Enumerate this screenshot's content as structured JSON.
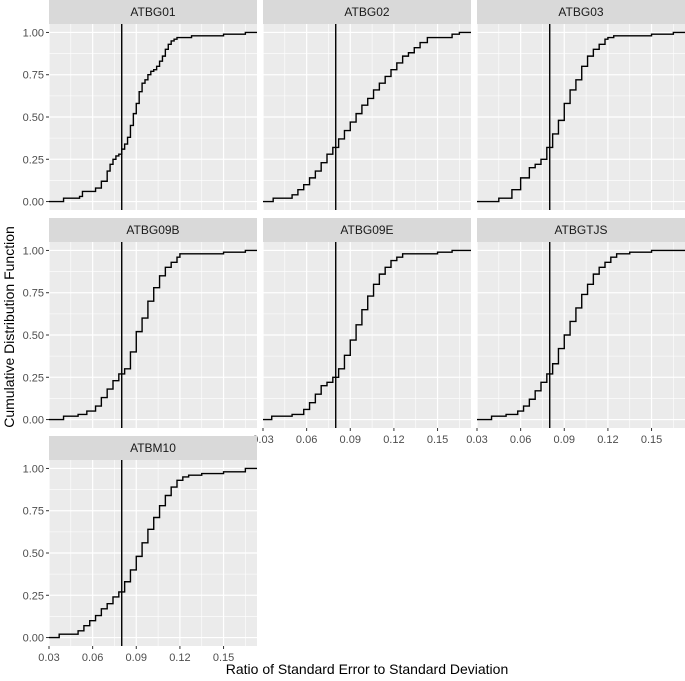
{
  "chart_data": {
    "type": "line",
    "subtype": "step-ecdf-small-multiples",
    "xlabel": "Ratio of Standard Error to Standard Deviation",
    "ylabel": "Cumulative Distribution Function",
    "xlim": [
      0.03,
      0.173
    ],
    "ylim": [
      0,
      1
    ],
    "x_ticks": [
      0.03,
      0.06,
      0.09,
      0.12,
      0.15
    ],
    "y_ticks": [
      0.0,
      0.25,
      0.5,
      0.75,
      1.0
    ],
    "x_tick_labels": [
      "0.03",
      "0.06",
      "0.09",
      "0.12",
      "0.15"
    ],
    "y_tick_labels": [
      "0.00",
      "0.25",
      "0.50",
      "0.75",
      "1.00"
    ],
    "reference_line_x": 0.08,
    "grid": true,
    "line_color": "#000000",
    "panel_background": "#ebebeb",
    "strip_background": "#d9d9d9",
    "panels": [
      {
        "name": "ATBG01",
        "x": [
          0.03,
          0.04,
          0.051,
          0.053,
          0.062,
          0.066,
          0.07,
          0.072,
          0.074,
          0.076,
          0.078,
          0.08,
          0.082,
          0.084,
          0.086,
          0.088,
          0.09,
          0.092,
          0.094,
          0.096,
          0.098,
          0.1,
          0.102,
          0.104,
          0.106,
          0.108,
          0.11,
          0.112,
          0.114,
          0.116,
          0.118,
          0.12,
          0.128,
          0.135,
          0.15,
          0.165,
          0.173
        ],
        "y": [
          0.0,
          0.02,
          0.03,
          0.06,
          0.08,
          0.12,
          0.18,
          0.22,
          0.25,
          0.27,
          0.28,
          0.31,
          0.34,
          0.38,
          0.45,
          0.52,
          0.58,
          0.65,
          0.7,
          0.72,
          0.75,
          0.77,
          0.78,
          0.8,
          0.83,
          0.86,
          0.9,
          0.93,
          0.95,
          0.96,
          0.97,
          0.97,
          0.98,
          0.98,
          0.99,
          1.0,
          1.0
        ]
      },
      {
        "name": "ATBG02",
        "x": [
          0.03,
          0.037,
          0.05,
          0.054,
          0.058,
          0.062,
          0.066,
          0.07,
          0.074,
          0.078,
          0.082,
          0.086,
          0.09,
          0.094,
          0.098,
          0.102,
          0.106,
          0.11,
          0.114,
          0.118,
          0.122,
          0.126,
          0.13,
          0.134,
          0.138,
          0.143,
          0.16,
          0.165,
          0.173
        ],
        "y": [
          0.0,
          0.02,
          0.04,
          0.07,
          0.1,
          0.14,
          0.18,
          0.23,
          0.28,
          0.32,
          0.37,
          0.42,
          0.47,
          0.52,
          0.57,
          0.61,
          0.66,
          0.7,
          0.74,
          0.78,
          0.82,
          0.86,
          0.88,
          0.91,
          0.94,
          0.97,
          0.99,
          1.0,
          1.0
        ]
      },
      {
        "name": "ATBG03",
        "x": [
          0.03,
          0.045,
          0.054,
          0.06,
          0.066,
          0.07,
          0.074,
          0.078,
          0.082,
          0.086,
          0.09,
          0.094,
          0.098,
          0.102,
          0.106,
          0.11,
          0.114,
          0.118,
          0.12,
          0.124,
          0.15,
          0.165,
          0.173
        ],
        "y": [
          0.0,
          0.02,
          0.07,
          0.14,
          0.2,
          0.22,
          0.25,
          0.32,
          0.4,
          0.48,
          0.58,
          0.66,
          0.72,
          0.8,
          0.86,
          0.9,
          0.93,
          0.96,
          0.97,
          0.98,
          0.99,
          1.0,
          1.0
        ]
      },
      {
        "name": "ATBG09B",
        "x": [
          0.03,
          0.04,
          0.05,
          0.056,
          0.062,
          0.066,
          0.07,
          0.074,
          0.078,
          0.082,
          0.086,
          0.09,
          0.094,
          0.098,
          0.102,
          0.106,
          0.11,
          0.114,
          0.118,
          0.12,
          0.15,
          0.165,
          0.173
        ],
        "y": [
          0.0,
          0.02,
          0.03,
          0.05,
          0.08,
          0.13,
          0.18,
          0.23,
          0.27,
          0.3,
          0.4,
          0.52,
          0.6,
          0.7,
          0.78,
          0.85,
          0.9,
          0.93,
          0.96,
          0.98,
          0.99,
          1.0,
          1.0
        ]
      },
      {
        "name": "ATBG09E",
        "x": [
          0.03,
          0.036,
          0.05,
          0.058,
          0.062,
          0.066,
          0.07,
          0.074,
          0.078,
          0.082,
          0.086,
          0.09,
          0.094,
          0.098,
          0.102,
          0.106,
          0.11,
          0.114,
          0.118,
          0.122,
          0.126,
          0.15,
          0.16,
          0.173
        ],
        "y": [
          0.0,
          0.02,
          0.03,
          0.06,
          0.1,
          0.15,
          0.2,
          0.22,
          0.25,
          0.3,
          0.38,
          0.47,
          0.56,
          0.65,
          0.73,
          0.8,
          0.86,
          0.9,
          0.94,
          0.96,
          0.98,
          0.99,
          1.0,
          1.0
        ]
      },
      {
        "name": "ATBGTJS",
        "x": [
          0.03,
          0.04,
          0.05,
          0.058,
          0.062,
          0.066,
          0.07,
          0.074,
          0.078,
          0.082,
          0.086,
          0.09,
          0.094,
          0.098,
          0.102,
          0.106,
          0.11,
          0.114,
          0.118,
          0.122,
          0.126,
          0.135,
          0.15,
          0.173
        ],
        "y": [
          0.0,
          0.02,
          0.03,
          0.05,
          0.08,
          0.12,
          0.17,
          0.22,
          0.27,
          0.33,
          0.42,
          0.5,
          0.58,
          0.66,
          0.74,
          0.8,
          0.86,
          0.9,
          0.93,
          0.96,
          0.98,
          0.99,
          1.0,
          1.0
        ]
      },
      {
        "name": "ATBM10",
        "x": [
          0.03,
          0.037,
          0.05,
          0.054,
          0.058,
          0.062,
          0.066,
          0.07,
          0.074,
          0.078,
          0.082,
          0.086,
          0.09,
          0.094,
          0.098,
          0.102,
          0.106,
          0.11,
          0.114,
          0.118,
          0.122,
          0.126,
          0.135,
          0.15,
          0.165,
          0.173
        ],
        "y": [
          0.0,
          0.02,
          0.04,
          0.07,
          0.1,
          0.13,
          0.17,
          0.2,
          0.24,
          0.27,
          0.33,
          0.4,
          0.48,
          0.56,
          0.64,
          0.71,
          0.78,
          0.84,
          0.89,
          0.93,
          0.95,
          0.96,
          0.97,
          0.98,
          1.0,
          1.0
        ]
      }
    ]
  }
}
